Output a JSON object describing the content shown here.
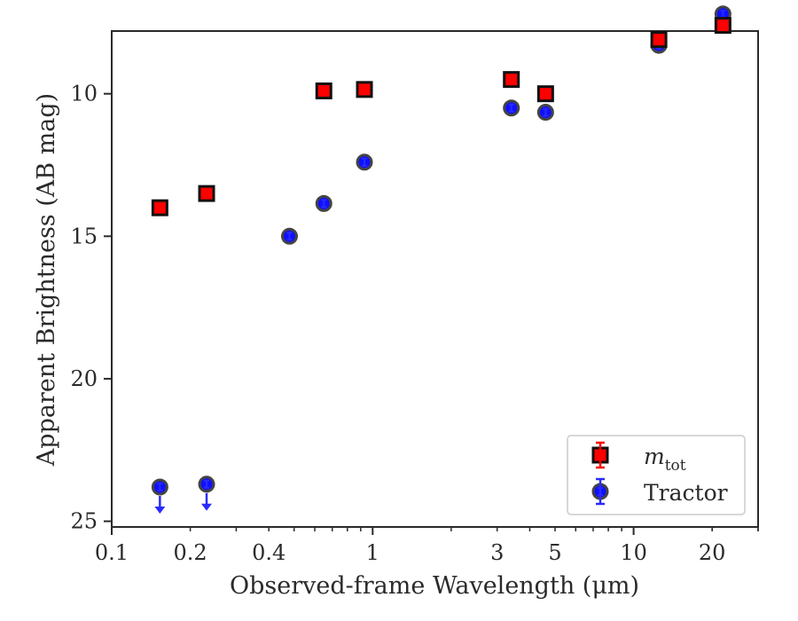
{
  "chart_data": {
    "type": "scatter",
    "xlabel": "Observed-frame Wavelength (μm)",
    "ylabel": "Apparent Brightness (AB mag)",
    "xscale": "log",
    "xlim": [
      0.1,
      30
    ],
    "ylim": [
      25.2,
      7.8
    ],
    "y_inverted": true,
    "x_ticks": [
      0.1,
      0.2,
      0.4,
      1,
      3,
      5,
      10,
      20
    ],
    "x_tick_labels": [
      "0.1",
      "0.2",
      "0.4",
      "1",
      "3",
      "5",
      "10",
      "20"
    ],
    "y_ticks": [
      10,
      15,
      20,
      25
    ],
    "y_tick_labels": [
      "10",
      "15",
      "20",
      "25"
    ],
    "grid": false,
    "legend_position": "bottom-right",
    "series": [
      {
        "name": "m_tot",
        "legend_label_main": "m",
        "legend_label_sub": "tot",
        "marker": "square",
        "face_color": "#ff0000",
        "edge_color": "#111111",
        "error_color": "#ff0000",
        "x": [
          0.153,
          0.231,
          0.65,
          0.93,
          3.4,
          4.6,
          12.5,
          22.0
        ],
        "y": [
          14.0,
          13.5,
          9.9,
          9.85,
          9.5,
          10.0,
          8.1,
          7.6
        ]
      },
      {
        "name": "Tractor",
        "legend_label_main": "Tractor",
        "marker": "circle",
        "face_color": "#1010ff",
        "edge_color": "#444444",
        "error_color": "#2a2aff",
        "x": [
          0.153,
          0.231,
          0.48,
          0.65,
          0.93,
          3.4,
          4.6,
          12.5,
          22.0
        ],
        "y": [
          23.8,
          23.7,
          15.0,
          13.85,
          12.4,
          10.5,
          10.65,
          8.3,
          7.2
        ],
        "upper_limit": [
          true,
          true,
          false,
          false,
          false,
          false,
          false,
          false,
          false
        ]
      }
    ]
  }
}
